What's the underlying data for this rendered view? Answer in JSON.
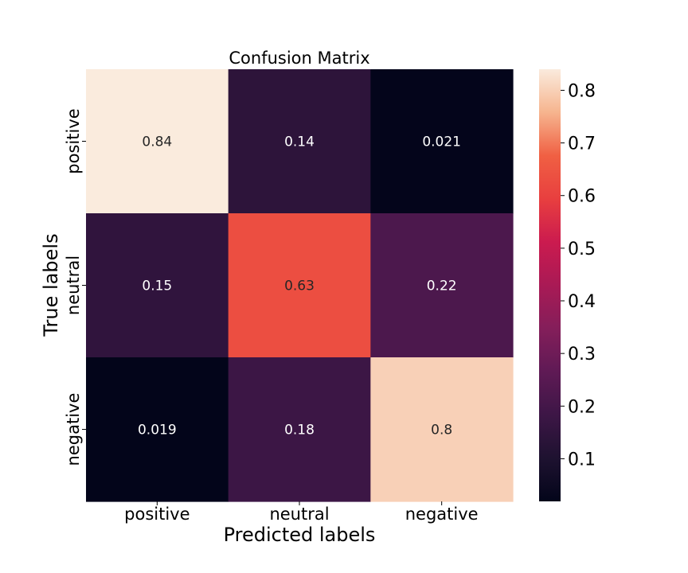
{
  "chart_data": {
    "type": "heatmap",
    "title": "Confusion Matrix",
    "xlabel": "Predicted labels",
    "ylabel": "True labels",
    "x_categories": [
      "positive",
      "neutral",
      "negative"
    ],
    "y_categories": [
      "positive",
      "neutral",
      "negative"
    ],
    "values": [
      [
        0.84,
        0.14,
        0.021
      ],
      [
        0.15,
        0.63,
        0.22
      ],
      [
        0.019,
        0.18,
        0.8
      ]
    ],
    "cell_labels": [
      [
        "0.84",
        "0.14",
        "0.021"
      ],
      [
        "0.15",
        "0.63",
        "0.22"
      ],
      [
        "0.019",
        "0.18",
        "0.8"
      ]
    ],
    "colormap": "rocket",
    "color_range": [
      0.019,
      0.84
    ],
    "colorbar_ticks": [
      0.1,
      0.2,
      0.3,
      0.4,
      0.5,
      0.6,
      0.7,
      0.8
    ],
    "colorbar_tick_labels": [
      "0.1",
      "0.2",
      "0.3",
      "0.4",
      "0.5",
      "0.6",
      "0.7",
      "0.8"
    ],
    "grid": false,
    "legend": "none",
    "colorbar": "right"
  }
}
